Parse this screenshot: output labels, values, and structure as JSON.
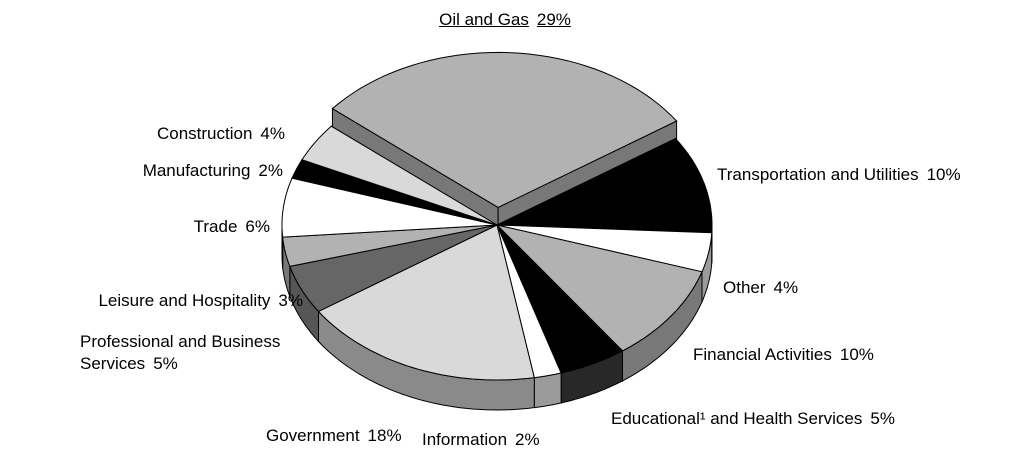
{
  "chart_data": {
    "type": "pie3d",
    "categories": [
      "Oil and Gas",
      "Transportation and Utilities",
      "Other",
      "Financial Activities",
      "Educational¹ and Health Services",
      "Information",
      "Government",
      "Professional and Business Services",
      "Leisure and Hospitality",
      "Trade",
      "Manufacturing",
      "Construction"
    ],
    "values": [
      29,
      10,
      4,
      10,
      5,
      2,
      18,
      5,
      3,
      6,
      2,
      4
    ],
    "value_labels": [
      "29%",
      "10%",
      "4%",
      "10%",
      "5%",
      "2%",
      "18%",
      "5%",
      "3%",
      "6%",
      "2%",
      "4%"
    ],
    "colors": [
      "#b2b2b2",
      "#000000",
      "#ffffff",
      "#b2b2b2",
      "#000000",
      "#ffffff",
      "#d9d9d9",
      "#666666",
      "#b2b2b2",
      "#ffffff",
      "#000000",
      "#d9d9d9"
    ]
  }
}
